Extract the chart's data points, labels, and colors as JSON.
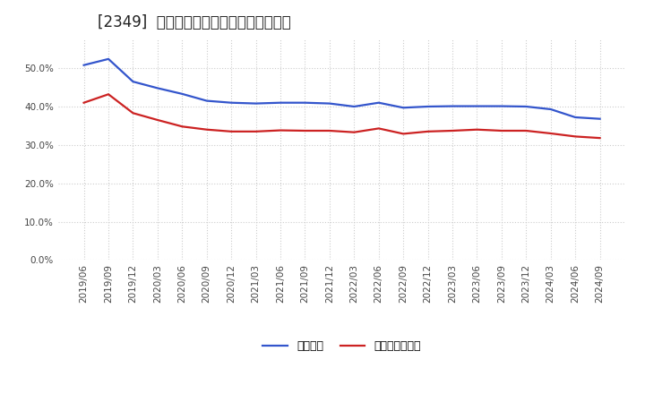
{
  "title": "[2349]  固定比率、固定長期適合率の推移",
  "x_labels": [
    "2019/06",
    "2019/09",
    "2019/12",
    "2020/03",
    "2020/06",
    "2020/09",
    "2020/12",
    "2021/03",
    "2021/06",
    "2021/09",
    "2021/12",
    "2022/03",
    "2022/06",
    "2022/09",
    "2022/12",
    "2023/03",
    "2023/06",
    "2023/09",
    "2023/12",
    "2024/03",
    "2024/06",
    "2024/09"
  ],
  "fixed_ratio": [
    0.508,
    0.524,
    0.465,
    0.448,
    0.433,
    0.415,
    0.41,
    0.408,
    0.41,
    0.41,
    0.408,
    0.4,
    0.41,
    0.397,
    0.4,
    0.401,
    0.401,
    0.401,
    0.4,
    0.393,
    0.372,
    0.368
  ],
  "fixed_long_ratio": [
    0.41,
    0.432,
    0.383,
    0.365,
    0.348,
    0.34,
    0.335,
    0.335,
    0.338,
    0.337,
    0.337,
    0.333,
    0.343,
    0.329,
    0.335,
    0.337,
    0.34,
    0.337,
    0.337,
    0.33,
    0.322,
    0.318
  ],
  "line_color_blue": "#3355cc",
  "line_color_red": "#cc2222",
  "bg_color": "#ffffff",
  "plot_bg_color": "#ffffff",
  "grid_color": "#cccccc",
  "legend_label_blue": "固定比率",
  "legend_label_red": "固定長期適合率",
  "ylim": [
    0.0,
    0.575
  ],
  "yticks": [
    0.0,
    0.1,
    0.2,
    0.3,
    0.4,
    0.5
  ],
  "title_fontsize": 12,
  "axis_fontsize": 7.5,
  "legend_fontsize": 9
}
